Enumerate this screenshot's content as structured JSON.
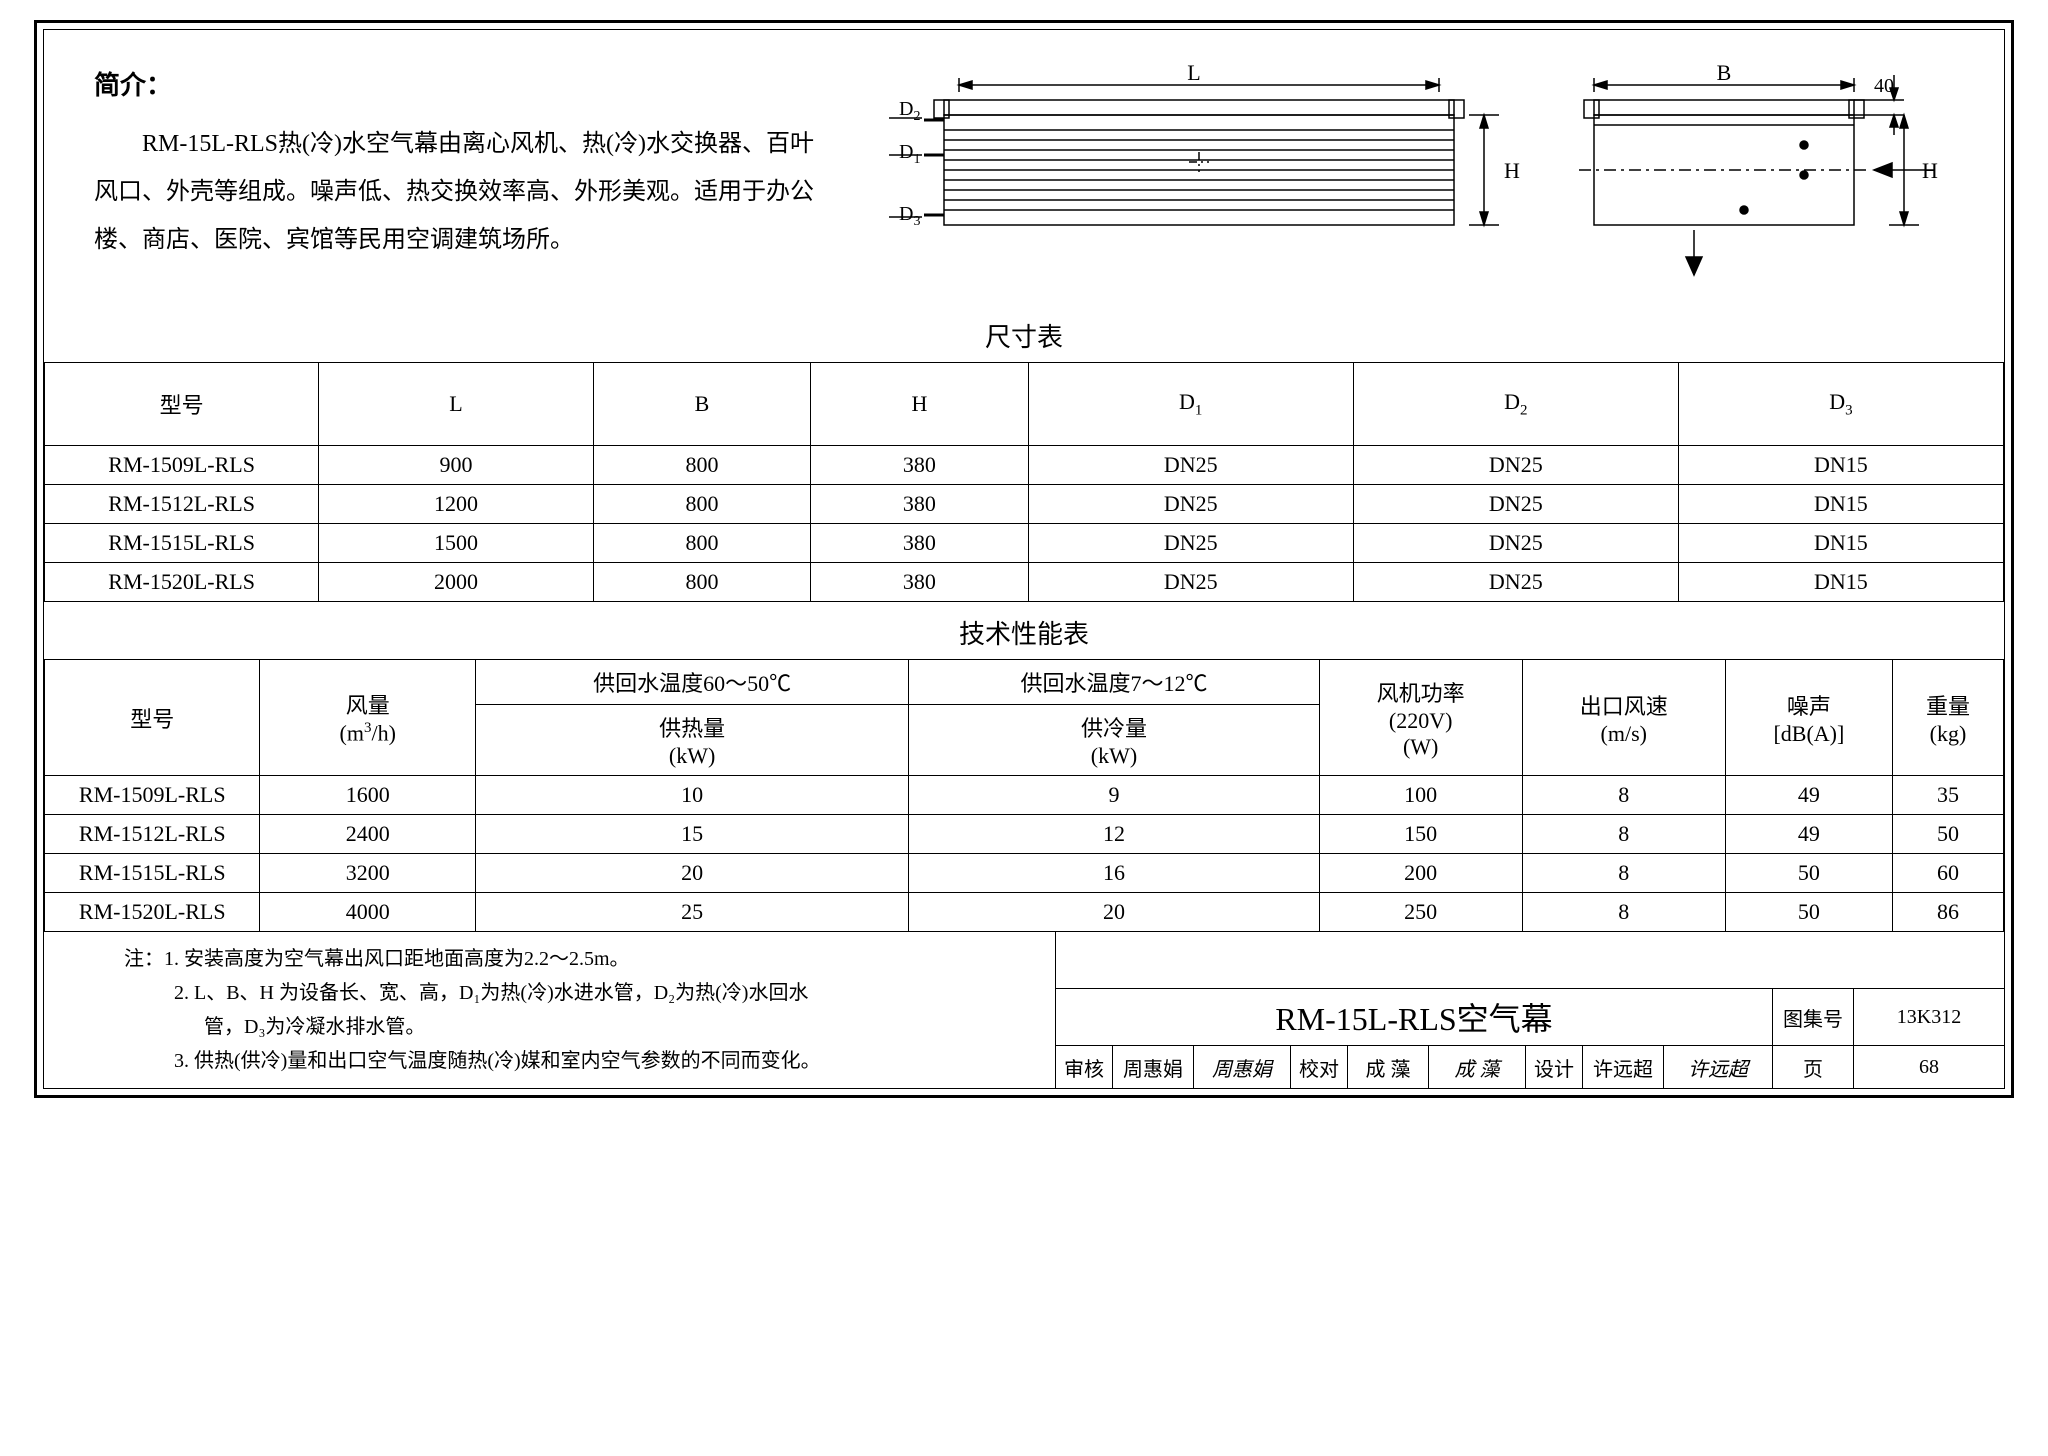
{
  "intro": {
    "title": "简介：",
    "text": "RM-15L-RLS热(冷)水空气幕由离心风机、热(冷)水交换器、百叶风口、外壳等组成。噪声低、热交换效率高、外形美观。适用于办公楼、商店、医院、宾馆等民用空调建筑场所。"
  },
  "diagram": {
    "L_label": "L",
    "B_label": "B",
    "H_label": "H",
    "D1_label": "D₁",
    "D2_label": "D₂",
    "D3_label": "D₃",
    "dim40": "40",
    "stroke": "#000000",
    "fill": "#ffffff"
  },
  "dim_table": {
    "title": "尺寸表",
    "columns": [
      "型号",
      "L",
      "B",
      "H",
      "D₁",
      "D₂",
      "D₃"
    ],
    "rows": [
      [
        "RM-1509L-RLS",
        "900",
        "800",
        "380",
        "DN25",
        "DN25",
        "DN15"
      ],
      [
        "RM-1512L-RLS",
        "1200",
        "800",
        "380",
        "DN25",
        "DN25",
        "DN15"
      ],
      [
        "RM-1515L-RLS",
        "1500",
        "800",
        "380",
        "DN25",
        "DN25",
        "DN15"
      ],
      [
        "RM-1520L-RLS",
        "2000",
        "800",
        "380",
        "DN25",
        "DN25",
        "DN15"
      ]
    ]
  },
  "perf_table": {
    "title": "技术性能表",
    "head": {
      "model": "型号",
      "airflow": "风量",
      "airflow_unit": "(m³/h)",
      "hot_temp": "供回水温度60～50℃",
      "hot_cap": "供热量",
      "hot_unit": "(kW)",
      "cold_temp": "供回水温度7～12℃",
      "cold_cap": "供冷量",
      "cold_unit": "(kW)",
      "fan_power": "风机功率",
      "fan_volt": "(220V)",
      "fan_unit": "(W)",
      "outlet_speed": "出口风速",
      "outlet_unit": "(m/s)",
      "noise": "噪声",
      "noise_unit": "[dB(A)]",
      "weight": "重量",
      "weight_unit": "(kg)"
    },
    "rows": [
      [
        "RM-1509L-RLS",
        "1600",
        "10",
        "9",
        "100",
        "8",
        "49",
        "35"
      ],
      [
        "RM-1512L-RLS",
        "2400",
        "15",
        "12",
        "150",
        "8",
        "49",
        "50"
      ],
      [
        "RM-1515L-RLS",
        "3200",
        "20",
        "16",
        "200",
        "8",
        "50",
        "60"
      ],
      [
        "RM-1520L-RLS",
        "4000",
        "25",
        "20",
        "250",
        "8",
        "50",
        "86"
      ]
    ]
  },
  "notes": {
    "line1": "注：1. 安装高度为空气幕出风口距地面高度为2.2～2.5m。",
    "line2": "2. L、B、H 为设备长、宽、高，D₁为热(冷)水进水管，D₂为热(冷)水回水",
    "line2b": "管，D₃为冷凝水排水管。",
    "line3": "3. 供热(供冷)量和出口空气温度随热(冷)媒和室内空气参数的不同而变化。"
  },
  "titleblock": {
    "main": "RM-15L-RLS空气幕",
    "atlas_label": "图集号",
    "atlas_no": "13K312",
    "page_label": "页",
    "page_no": "68",
    "check_label": "审核",
    "check_name": "周惠娟",
    "proof_label": "校对",
    "proof_name": "成   藻",
    "design_label": "设计",
    "design_name": "许远超"
  }
}
